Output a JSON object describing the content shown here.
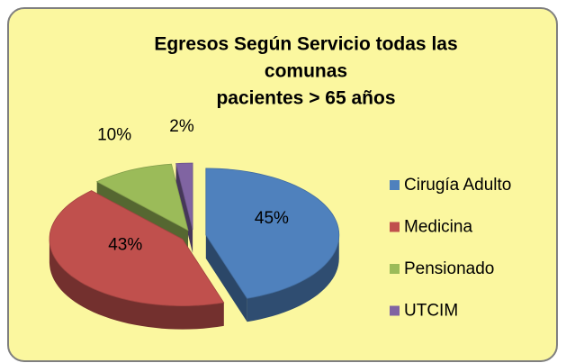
{
  "chart_data": {
    "type": "pie",
    "title": [
      "Egresos Según  Servicio todas las",
      "comunas",
      "pacientes > 65 años"
    ],
    "categories": [
      "Cirugía Adulto",
      "Medicina",
      "Pensionado",
      "UTCIM"
    ],
    "values": [
      45,
      43,
      10,
      2
    ],
    "value_labels": [
      "45%",
      "43%",
      "10%",
      "2%"
    ],
    "colors": [
      "#4f81bd",
      "#c0504d",
      "#9bbb59",
      "#8064a2"
    ],
    "legend": "right",
    "three_d": true,
    "exploded": true
  }
}
